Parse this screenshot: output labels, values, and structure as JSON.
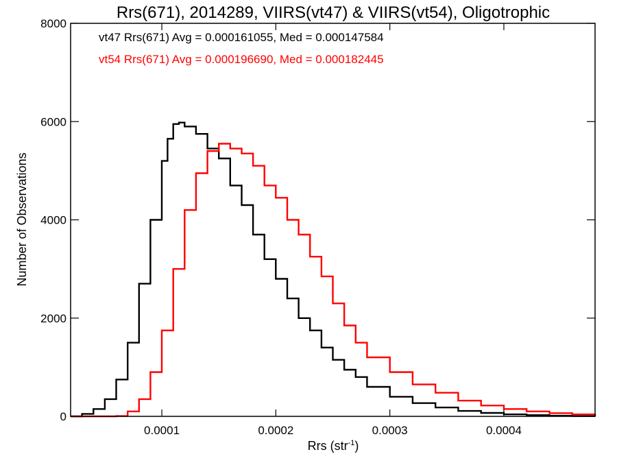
{
  "chart_data": {
    "type": "line",
    "title": "Rrs(671), 2014289, VIIRS(vt47) & VIIRS(vt54), Oligotrophic",
    "xlabel": "Rrs (str",
    "xlabel_sup": "-1",
    "xlabel_close": ")",
    "ylabel": "Number of Observations",
    "xlim": [
      2e-05,
      0.00048
    ],
    "ylim": [
      0,
      8000
    ],
    "x_ticks": [
      {
        "value": 0.0001,
        "label": "0.0001"
      },
      {
        "value": 0.0002,
        "label": "0.0002"
      },
      {
        "value": 0.0003,
        "label": "0.0003"
      },
      {
        "value": 0.0004,
        "label": "0.0004"
      }
    ],
    "y_ticks": [
      {
        "value": 0,
        "label": "0"
      },
      {
        "value": 2000,
        "label": "2000"
      },
      {
        "value": 4000,
        "label": "4000"
      },
      {
        "value": 6000,
        "label": "6000"
      },
      {
        "value": 8000,
        "label": "8000"
      }
    ],
    "grid": false,
    "annotations": [
      "vt47 Rrs(671) Avg = 0.000161055, Med = 0.000147584",
      "vt54 Rrs(671) Avg = 0.000196690, Med = 0.000182445"
    ],
    "series": [
      {
        "color": "#000000",
        "x": [
          2e-05,
          3e-05,
          4e-05,
          5e-05,
          6e-05,
          7e-05,
          8e-05,
          9e-05,
          0.0001,
          0.000105,
          0.00011,
          0.000115,
          0.00012,
          0.00013,
          0.00014,
          0.00015,
          0.00016,
          0.00017,
          0.00018,
          0.00019,
          0.0002,
          0.00021,
          0.00022,
          0.00023,
          0.00024,
          0.00025,
          0.00026,
          0.00027,
          0.00028,
          0.0003,
          0.00032,
          0.00034,
          0.00036,
          0.00038,
          0.0004,
          0.00042,
          0.00044,
          0.00046,
          0.00048
        ],
        "y": [
          0,
          50,
          150,
          350,
          750,
          1500,
          2700,
          4000,
          5200,
          5650,
          5950,
          5980,
          5900,
          5750,
          5450,
          5250,
          4700,
          4300,
          3700,
          3200,
          2800,
          2400,
          2000,
          1750,
          1400,
          1150,
          950,
          800,
          600,
          400,
          270,
          180,
          110,
          70,
          40,
          25,
          12,
          6,
          2
        ]
      },
      {
        "color": "#ff0000",
        "x": [
          2e-05,
          5e-05,
          6e-05,
          7e-05,
          8e-05,
          9e-05,
          0.0001,
          0.00011,
          0.00012,
          0.00013,
          0.00014,
          0.00015,
          0.000155,
          0.00016,
          0.00017,
          0.00018,
          0.00019,
          0.0002,
          0.00021,
          0.00022,
          0.00023,
          0.00024,
          0.00025,
          0.00026,
          0.00027,
          0.00028,
          0.0003,
          0.00032,
          0.00034,
          0.00036,
          0.00038,
          0.0004,
          0.00042,
          0.00044,
          0.00046,
          0.00048
        ],
        "y": [
          0,
          0,
          5,
          100,
          350,
          900,
          1750,
          3000,
          4200,
          4950,
          5400,
          5550,
          5550,
          5450,
          5350,
          5100,
          4700,
          4450,
          4000,
          3700,
          3250,
          2850,
          2300,
          1850,
          1500,
          1200,
          900,
          650,
          480,
          320,
          220,
          150,
          100,
          65,
          40,
          20
        ]
      }
    ]
  }
}
